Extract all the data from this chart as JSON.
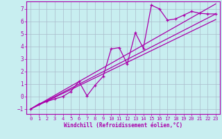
{
  "xlabel": "Windchill (Refroidissement éolien,°C)",
  "bg_color": "#c8eef0",
  "line_color": "#aa00aa",
  "grid_color": "#aabbcc",
  "xlim": [
    -0.5,
    23.5
  ],
  "ylim": [
    -1.4,
    7.6
  ],
  "xticks": [
    0,
    1,
    2,
    3,
    4,
    5,
    6,
    7,
    8,
    9,
    10,
    11,
    12,
    13,
    14,
    15,
    16,
    17,
    18,
    19,
    20,
    21,
    22,
    23
  ],
  "yticks": [
    -1,
    0,
    1,
    2,
    3,
    4,
    5,
    6,
    7
  ],
  "series1_x": [
    0,
    1,
    2,
    3,
    4,
    5,
    6,
    7,
    8,
    9,
    10,
    11,
    12,
    13,
    14,
    15,
    16,
    17,
    18,
    19,
    20,
    21,
    22,
    23
  ],
  "series1_y": [
    -1.0,
    -0.6,
    -0.4,
    -0.2,
    0.0,
    0.4,
    1.2,
    0.05,
    0.9,
    1.6,
    3.8,
    3.9,
    2.6,
    5.1,
    3.85,
    7.3,
    7.0,
    6.1,
    6.2,
    6.5,
    6.8,
    6.65,
    6.6,
    6.6
  ],
  "reg_line1_x": [
    0,
    23
  ],
  "reg_line1_y": [
    -1.0,
    6.6
  ],
  "reg_line2_x": [
    0,
    23
  ],
  "reg_line2_y": [
    -1.0,
    7.4
  ],
  "reg_line3_x": [
    0,
    23
  ],
  "reg_line3_y": [
    -1.0,
    6.15
  ]
}
